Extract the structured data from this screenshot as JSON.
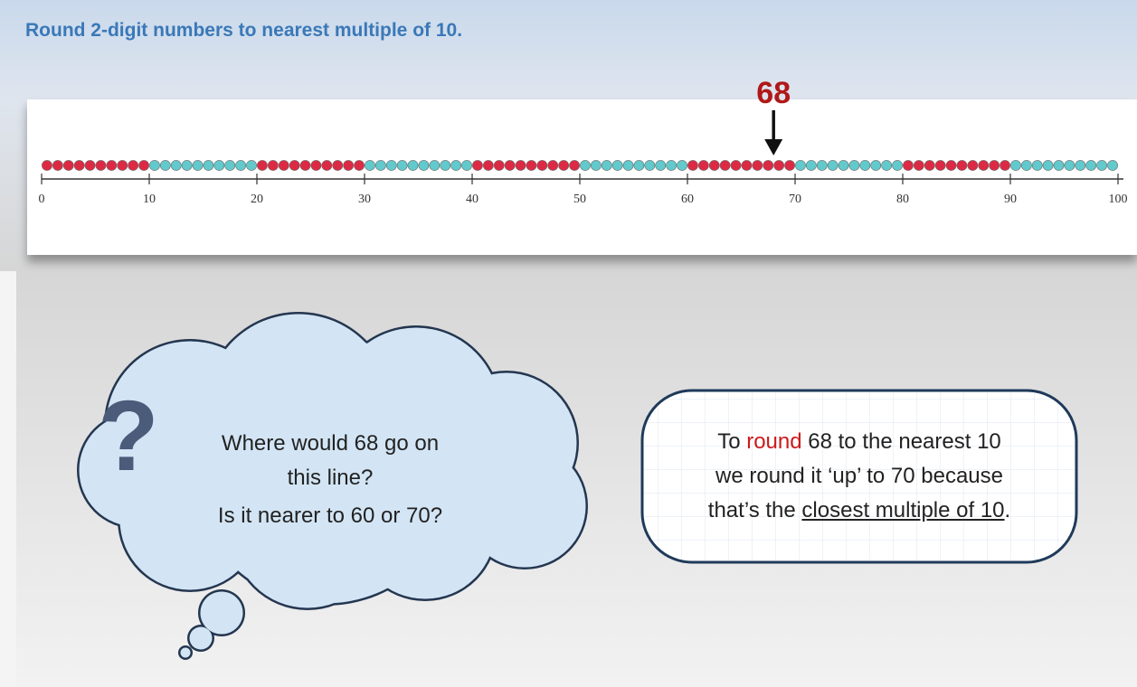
{
  "header": {
    "title": "Round 2-digit numbers to nearest multiple of 10."
  },
  "number_line": {
    "ticks": [
      0,
      10,
      20,
      30,
      40,
      50,
      60,
      70,
      80,
      90,
      100
    ],
    "marker": 68,
    "marker_label": "68",
    "bead_colors": [
      "#dd2a44",
      "#62c9cc"
    ]
  },
  "thought_bubble": {
    "icon": "?",
    "lines": [
      "Where would 68 go on",
      "this line?",
      "Is it nearer to 60 or 70?"
    ]
  },
  "speech_box": {
    "lines": [
      [
        "To ",
        "round",
        " 68 to the nearest 10"
      ],
      [
        "we round it ‘up’ to 70 because"
      ],
      [
        "that’s the ",
        "closest multiple of 10",
        "."
      ]
    ]
  }
}
